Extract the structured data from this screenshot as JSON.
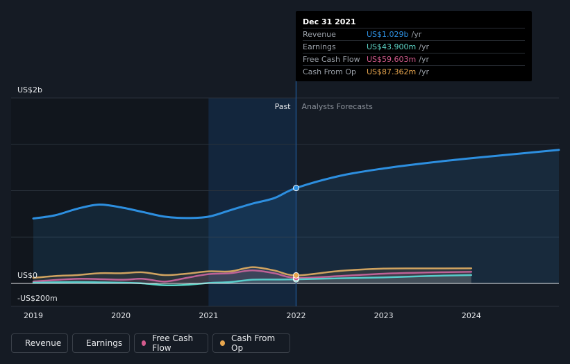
{
  "chart_data": {
    "type": "line",
    "x_ticks": [
      "2019",
      "2020",
      "2021",
      "2022",
      "2023",
      "2024"
    ],
    "y_labels": {
      "top": "US$2b",
      "zero": "US$0",
      "bottom": "-US$200m"
    },
    "ylim": [
      -200,
      2000
    ],
    "xlim": [
      2019,
      2025
    ],
    "region_labels": {
      "past": "Past",
      "forecast": "Analysts Forecasts"
    },
    "divider_x": 2022,
    "highlight_range": [
      2021,
      2022
    ],
    "grid": true,
    "series": [
      {
        "name": "Revenue",
        "color": "#2d8fe0",
        "fill": true,
        "x": [
          2019,
          2019.25,
          2019.5,
          2019.75,
          2020,
          2020.25,
          2020.5,
          2020.75,
          2021,
          2021.25,
          2021.5,
          2021.75,
          2022
        ],
        "y": [
          700,
          735,
          805,
          850,
          820,
          770,
          720,
          705,
          720,
          790,
          860,
          920,
          1029
        ],
        "forecast_x": [
          2022,
          2022.5,
          2023,
          2023.5,
          2024,
          2024.5,
          2025
        ],
        "forecast_y": [
          1029,
          1160,
          1240,
          1300,
          1350,
          1395,
          1440
        ]
      },
      {
        "name": "Earnings",
        "color": "#5ed6c8",
        "fill": true,
        "x": [
          2019,
          2019.5,
          2020,
          2020.25,
          2020.5,
          2020.75,
          2021,
          2021.25,
          2021.5,
          2021.75,
          2022
        ],
        "y": [
          8,
          15,
          8,
          0,
          -20,
          -15,
          5,
          15,
          40,
          42,
          44
        ],
        "forecast_x": [
          2022,
          2022.5,
          2023,
          2023.5,
          2024
        ],
        "forecast_y": [
          44,
          55,
          65,
          80,
          90
        ]
      },
      {
        "name": "Free Cash Flow",
        "color": "#d45b8d",
        "fill": true,
        "x": [
          2019,
          2019.5,
          2020,
          2020.25,
          2020.5,
          2020.75,
          2021,
          2021.25,
          2021.5,
          2021.75,
          2022
        ],
        "y": [
          20,
          50,
          40,
          50,
          20,
          60,
          100,
          110,
          140,
          110,
          60
        ],
        "forecast_x": [
          2022,
          2022.5,
          2023,
          2023.5,
          2024
        ],
        "forecast_y": [
          60,
          80,
          105,
          118,
          125
        ]
      },
      {
        "name": "Cash From Op",
        "color": "#e8a64e",
        "fill": true,
        "x": [
          2019,
          2019.25,
          2019.5,
          2019.75,
          2020,
          2020.25,
          2020.5,
          2020.75,
          2021,
          2021.25,
          2021.5,
          2021.75,
          2022
        ],
        "y": [
          60,
          80,
          90,
          110,
          110,
          120,
          90,
          105,
          130,
          130,
          175,
          140,
          87
        ],
        "forecast_x": [
          2022,
          2022.5,
          2023,
          2023.5,
          2024
        ],
        "forecast_y": [
          87,
          135,
          160,
          162,
          163
        ]
      }
    ],
    "tooltip": {
      "date": "Dec 31 2021",
      "rows": [
        {
          "name": "Revenue",
          "value": "US$1.029b",
          "unit": "/yr",
          "color": "#2d8fe0"
        },
        {
          "name": "Earnings",
          "value": "US$43.900m",
          "unit": "/yr",
          "color": "#5ed6c8"
        },
        {
          "name": "Free Cash Flow",
          "value": "US$59.603m",
          "unit": "/yr",
          "color": "#d45b8d"
        },
        {
          "name": "Cash From Op",
          "value": "US$87.362m",
          "unit": "/yr",
          "color": "#e8a64e"
        }
      ]
    }
  },
  "legend": [
    {
      "label": "Revenue",
      "color": "#2d8fe0"
    },
    {
      "label": "Earnings",
      "color": "#5ed6c8"
    },
    {
      "label": "Free Cash Flow",
      "color": "#d45b8d"
    },
    {
      "label": "Cash From Op",
      "color": "#e8a64e"
    }
  ]
}
